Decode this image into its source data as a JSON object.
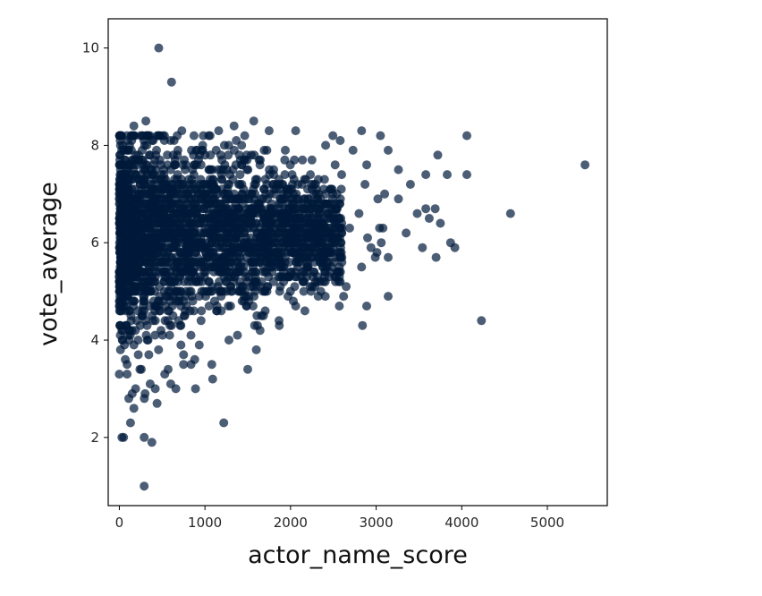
{
  "chart_data": {
    "type": "scatter",
    "title": "",
    "xlabel": "actor_name_score",
    "ylabel": "vote_average",
    "xlim": [
      -130,
      5700
    ],
    "ylim": [
      0.6,
      10.6
    ],
    "xticks": [
      0,
      1000,
      2000,
      3000,
      4000,
      5000
    ],
    "yticks": [
      2,
      4,
      6,
      8,
      10
    ],
    "grid": false,
    "legend": "none",
    "color": "#001a3a",
    "series": [
      {
        "dense_region": {
          "x_range": [
            0,
            2600
          ],
          "y_center": 6.2,
          "point_count": 2600,
          "seed": 7
        },
        "points": [
          [
            460,
            10.0
          ],
          [
            610,
            9.3
          ],
          [
            310,
            8.5
          ],
          [
            1570,
            8.5
          ],
          [
            170,
            8.4
          ],
          [
            1340,
            8.4
          ],
          [
            730,
            8.3
          ],
          [
            1160,
            8.3
          ],
          [
            1750,
            8.3
          ],
          [
            2830,
            8.3
          ],
          [
            2060,
            8.3
          ],
          [
            3050,
            8.2
          ],
          [
            4060,
            8.2
          ],
          [
            2580,
            8.1
          ],
          [
            2410,
            8.0
          ],
          [
            3140,
            7.9
          ],
          [
            2730,
            7.9
          ],
          [
            3720,
            7.8
          ],
          [
            5440,
            7.6
          ],
          [
            2890,
            7.6
          ],
          [
            3260,
            7.5
          ],
          [
            4060,
            7.4
          ],
          [
            3580,
            7.4
          ],
          [
            3830,
            7.4
          ],
          [
            3400,
            7.2
          ],
          [
            2870,
            7.2
          ],
          [
            3100,
            7.0
          ],
          [
            3020,
            6.9
          ],
          [
            3260,
            6.9
          ],
          [
            3580,
            6.7
          ],
          [
            3690,
            6.7
          ],
          [
            3480,
            6.6
          ],
          [
            4570,
            6.6
          ],
          [
            2800,
            6.6
          ],
          [
            3620,
            6.5
          ],
          [
            3750,
            6.4
          ],
          [
            3040,
            6.3
          ],
          [
            2690,
            6.3
          ],
          [
            3080,
            6.3
          ],
          [
            3350,
            6.2
          ],
          [
            2900,
            6.1
          ],
          [
            3060,
            6.0
          ],
          [
            3870,
            6.0
          ],
          [
            3540,
            5.9
          ],
          [
            3920,
            5.9
          ],
          [
            2940,
            5.9
          ],
          [
            3010,
            5.8
          ],
          [
            3700,
            5.7
          ],
          [
            3140,
            5.7
          ],
          [
            2990,
            5.7
          ],
          [
            2600,
            5.6
          ],
          [
            2830,
            5.5
          ],
          [
            2380,
            5.5
          ],
          [
            2260,
            5.3
          ],
          [
            2580,
            5.2
          ],
          [
            2290,
            5.2
          ],
          [
            2650,
            5.1
          ],
          [
            3140,
            4.9
          ],
          [
            2620,
            4.9
          ],
          [
            2570,
            4.7
          ],
          [
            2890,
            4.7
          ],
          [
            2840,
            4.3
          ],
          [
            4230,
            4.4
          ],
          [
            2060,
            4.7
          ],
          [
            1970,
            4.9
          ],
          [
            1920,
            5.2
          ],
          [
            1660,
            4.5
          ],
          [
            1580,
            4.3
          ],
          [
            1600,
            3.8
          ],
          [
            1500,
            3.4
          ],
          [
            1380,
            4.1
          ],
          [
            1280,
            4.0
          ],
          [
            1080,
            3.5
          ],
          [
            1090,
            3.2
          ],
          [
            890,
            3.0
          ],
          [
            880,
            3.6
          ],
          [
            750,
            3.5
          ],
          [
            660,
            3.0
          ],
          [
            600,
            3.1
          ],
          [
            530,
            3.3
          ],
          [
            440,
            2.7
          ],
          [
            420,
            3.0
          ],
          [
            360,
            3.1
          ],
          [
            300,
            2.9
          ],
          [
            240,
            3.4
          ],
          [
            190,
            3.0
          ],
          [
            150,
            2.9
          ],
          [
            110,
            2.8
          ],
          [
            90,
            3.3
          ],
          [
            70,
            3.6
          ],
          [
            170,
            2.6
          ],
          [
            130,
            2.3
          ],
          [
            30,
            2.0
          ],
          [
            50,
            2.0
          ],
          [
            290,
            2.0
          ],
          [
            380,
            1.9
          ],
          [
            1220,
            2.3
          ],
          [
            290,
            1.0
          ],
          [
            60,
            3.9
          ],
          [
            40,
            4.2
          ]
        ]
      }
    ]
  }
}
